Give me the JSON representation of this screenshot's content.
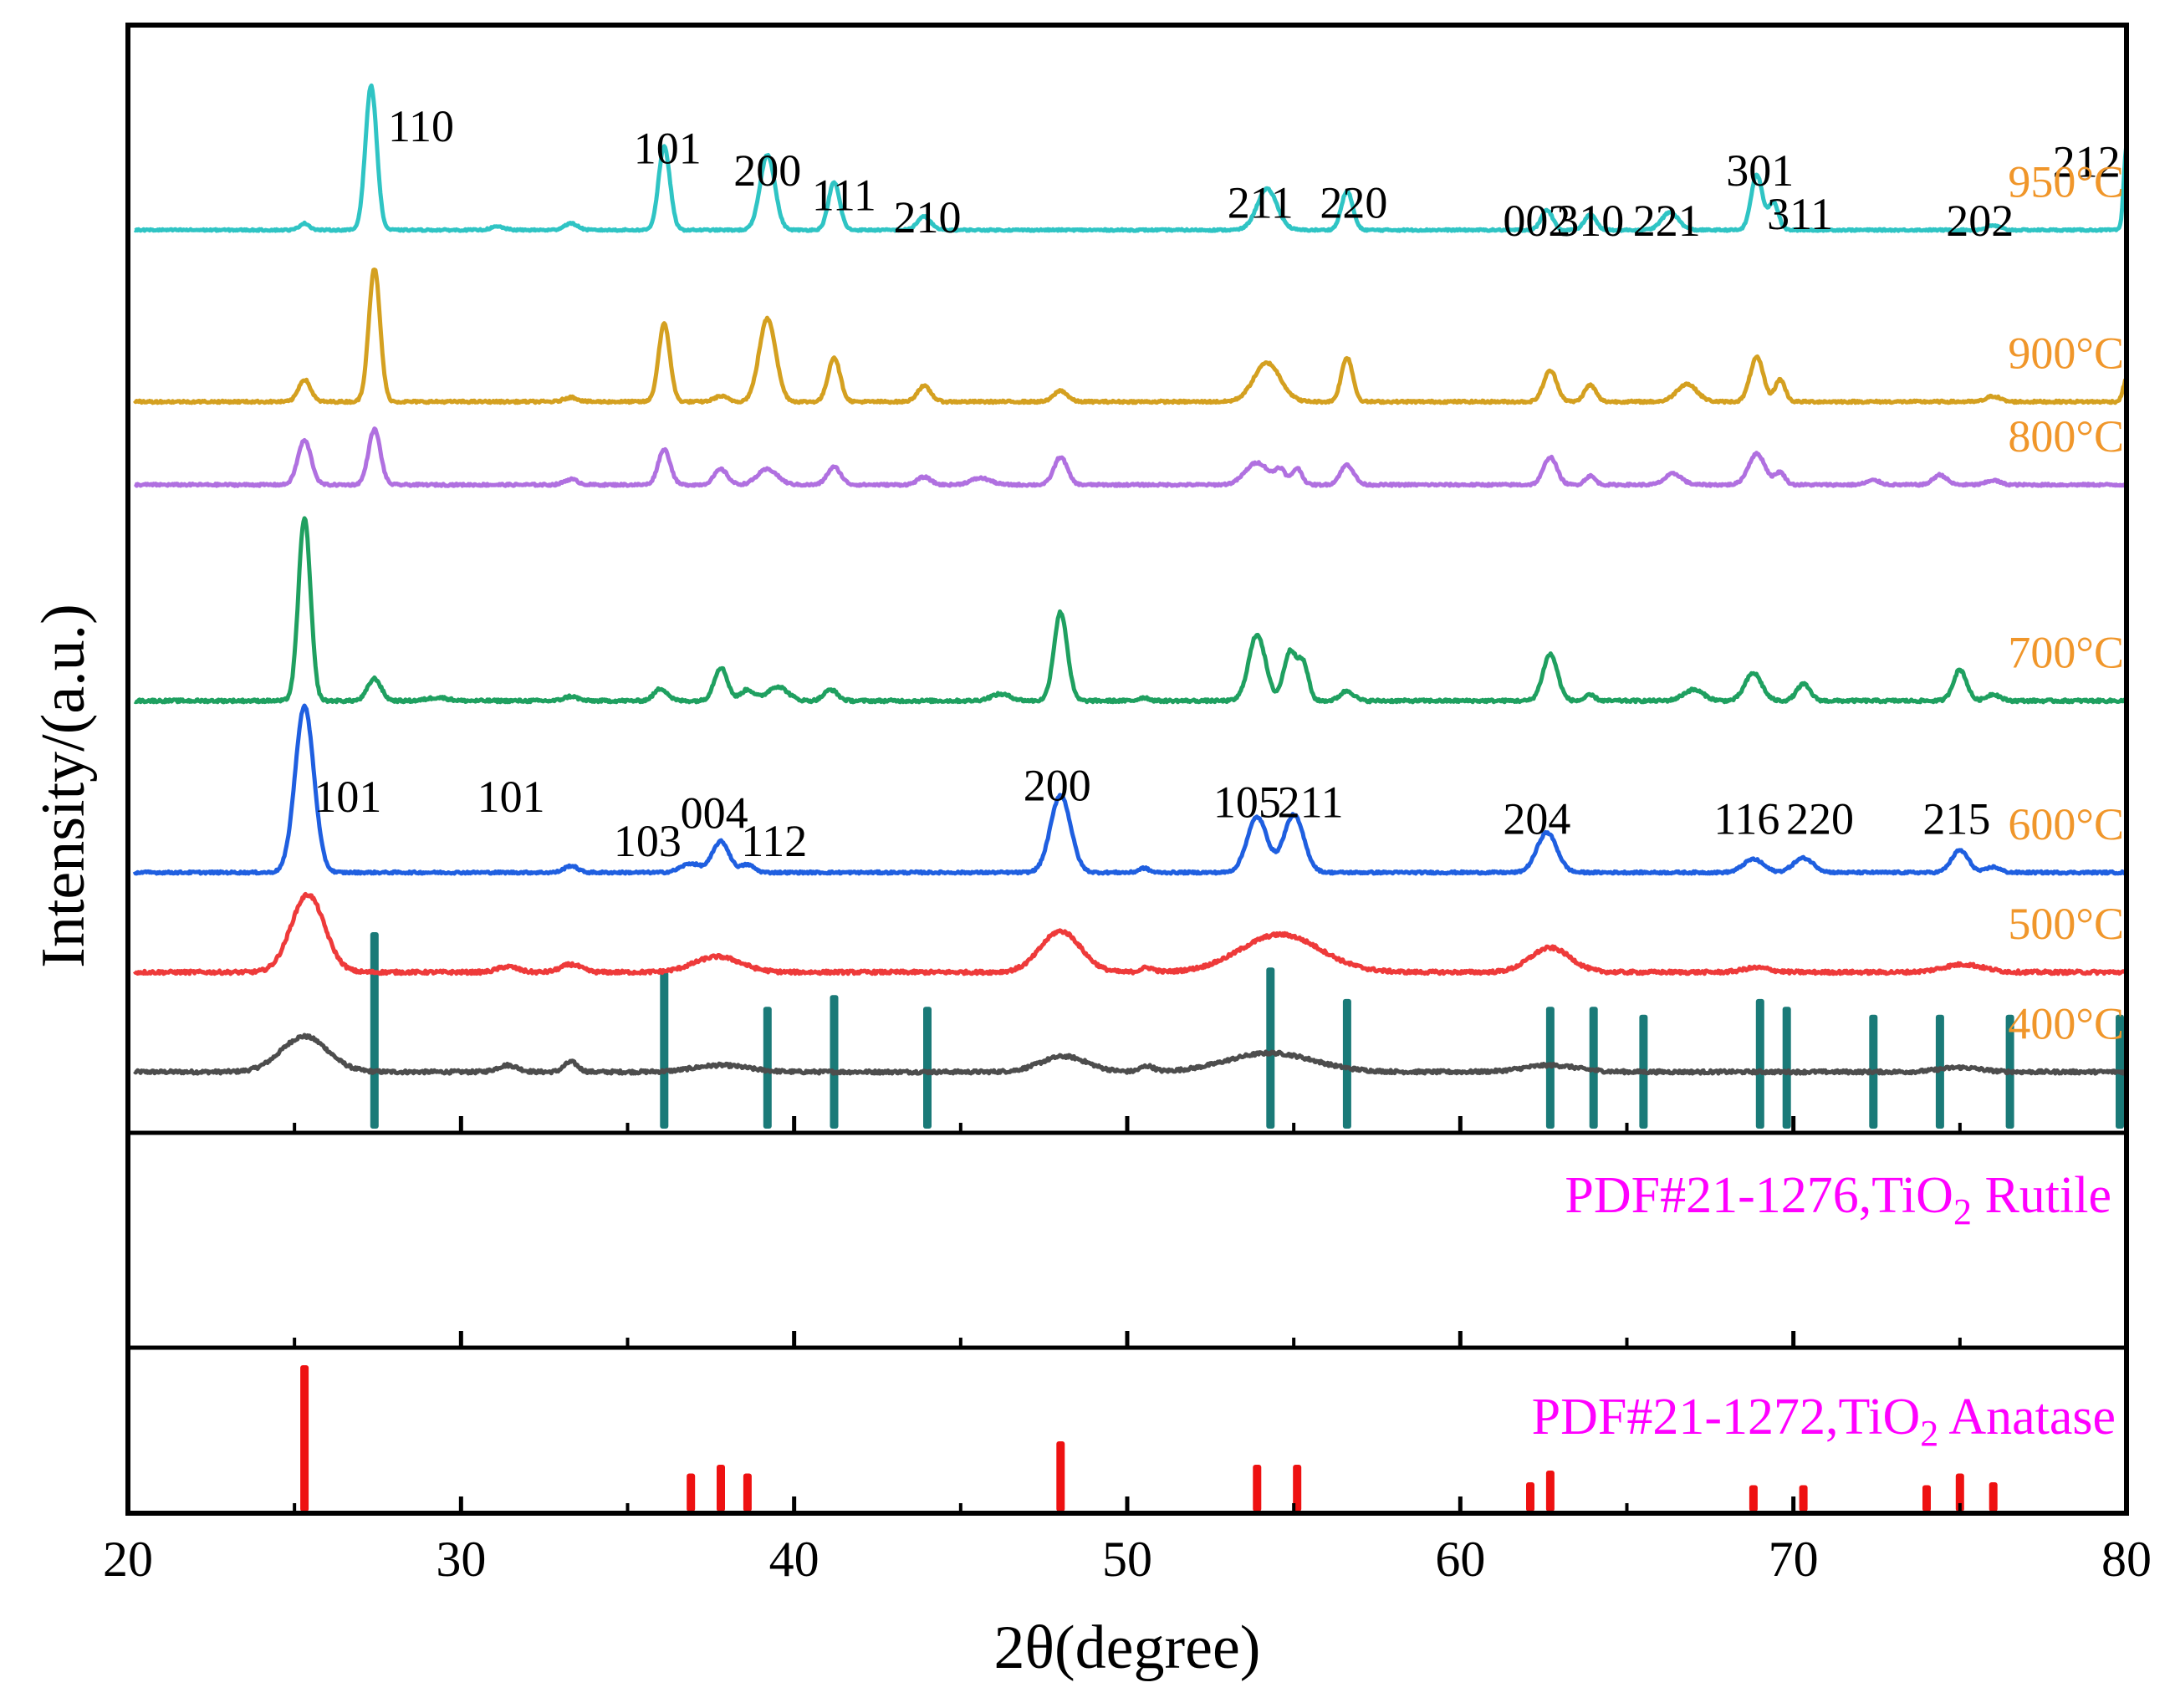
{
  "chart_data": {
    "type": "line",
    "title": "",
    "xlabel": "2θ(degree)",
    "ylabel": "Intensity/(a.u.)",
    "xlim": [
      20,
      80
    ],
    "x_ticks": [
      "20",
      "30",
      "40",
      "50",
      "60",
      "70",
      "80"
    ],
    "temperature_label_color": "#f0962a",
    "reference_label_color": "#ff00ff",
    "series": [
      {
        "name": "400°C",
        "label": "400°C",
        "color": "#4d4d4d",
        "offset": 0.055,
        "noise": 0.003,
        "peaks": [
          [
            25.3,
            0.032,
            0.7
          ],
          [
            31.4,
            0.006,
            0.3
          ],
          [
            33.3,
            0.009,
            0.2
          ],
          [
            37.8,
            0.006,
            0.8
          ],
          [
            48.1,
            0.014,
            0.7
          ],
          [
            50.6,
            0.005,
            0.2
          ],
          [
            54.3,
            0.017,
            1.3
          ],
          [
            62.7,
            0.006,
            0.8
          ],
          [
            75.0,
            0.004,
            0.6
          ]
        ]
      },
      {
        "name": "500°C",
        "label": "500°C",
        "color": "#ee3a3a",
        "offset": 0.145,
        "noise": 0.003,
        "peaks": [
          [
            25.4,
            0.07,
            0.5
          ],
          [
            31.4,
            0.005,
            0.3
          ],
          [
            33.3,
            0.007,
            0.3
          ],
          [
            37.7,
            0.014,
            0.7
          ],
          [
            48.0,
            0.037,
            0.6
          ],
          [
            50.6,
            0.004,
            0.2
          ],
          [
            54.6,
            0.034,
            1.2
          ],
          [
            62.7,
            0.022,
            0.6
          ],
          [
            68.9,
            0.004,
            0.4
          ],
          [
            75.1,
            0.007,
            0.6
          ]
        ]
      },
      {
        "name": "600°C",
        "label": "600°C",
        "color": "#1f5fe0",
        "offset": 0.235,
        "noise": 0.002,
        "peaks": [
          [
            25.3,
            0.15,
            0.28
          ],
          [
            33.3,
            0.006,
            0.2
          ],
          [
            36.9,
            0.008,
            0.3
          ],
          [
            37.8,
            0.028,
            0.25
          ],
          [
            38.6,
            0.007,
            0.2
          ],
          [
            48.0,
            0.07,
            0.3
          ],
          [
            50.5,
            0.004,
            0.15
          ],
          [
            53.9,
            0.05,
            0.3
          ],
          [
            55.0,
            0.052,
            0.3
          ],
          [
            62.6,
            0.036,
            0.3
          ],
          [
            68.8,
            0.012,
            0.3
          ],
          [
            70.3,
            0.013,
            0.3
          ],
          [
            75.0,
            0.02,
            0.25
          ],
          [
            76.0,
            0.005,
            0.2
          ]
        ]
      },
      {
        "name": "700°C",
        "label": "700°C",
        "color": "#1fa060",
        "offset": 0.39,
        "noise": 0.0025,
        "peaks": [
          [
            25.3,
            0.165,
            0.18
          ],
          [
            27.4,
            0.02,
            0.2
          ],
          [
            29.3,
            0.003,
            0.3
          ],
          [
            33.3,
            0.004,
            0.2
          ],
          [
            36.0,
            0.011,
            0.2
          ],
          [
            37.8,
            0.03,
            0.2
          ],
          [
            38.6,
            0.01,
            0.2
          ],
          [
            39.5,
            0.013,
            0.3
          ],
          [
            41.1,
            0.01,
            0.2
          ],
          [
            46.2,
            0.006,
            0.3
          ],
          [
            48.0,
            0.08,
            0.2
          ],
          [
            50.5,
            0.003,
            0.15
          ],
          [
            53.9,
            0.06,
            0.25
          ],
          [
            54.9,
            0.045,
            0.2
          ],
          [
            55.3,
            0.03,
            0.15
          ],
          [
            56.6,
            0.009,
            0.2
          ],
          [
            62.7,
            0.042,
            0.22
          ],
          [
            63.9,
            0.005,
            0.15
          ],
          [
            67.0,
            0.01,
            0.3
          ],
          [
            68.8,
            0.025,
            0.25
          ],
          [
            70.3,
            0.015,
            0.2
          ],
          [
            75.0,
            0.028,
            0.2
          ],
          [
            76.0,
            0.006,
            0.2
          ]
        ]
      },
      {
        "name": "800°C",
        "label": "800°C",
        "color": "#b070e0",
        "offset": 0.585,
        "noise": 0.002,
        "peaks": [
          [
            25.3,
            0.04,
            0.2
          ],
          [
            27.4,
            0.05,
            0.18
          ],
          [
            33.3,
            0.005,
            0.2
          ],
          [
            36.1,
            0.032,
            0.18
          ],
          [
            37.8,
            0.014,
            0.2
          ],
          [
            39.2,
            0.014,
            0.3
          ],
          [
            41.2,
            0.016,
            0.2
          ],
          [
            43.9,
            0.007,
            0.2
          ],
          [
            45.6,
            0.006,
            0.3
          ],
          [
            48.0,
            0.025,
            0.2
          ],
          [
            53.9,
            0.02,
            0.35
          ],
          [
            54.6,
            0.013,
            0.15
          ],
          [
            55.1,
            0.015,
            0.15
          ],
          [
            56.6,
            0.018,
            0.2
          ],
          [
            62.7,
            0.025,
            0.2
          ],
          [
            63.9,
            0.008,
            0.15
          ],
          [
            66.4,
            0.01,
            0.25
          ],
          [
            68.9,
            0.028,
            0.25
          ],
          [
            69.6,
            0.011,
            0.15
          ],
          [
            72.4,
            0.004,
            0.2
          ],
          [
            74.4,
            0.009,
            0.2
          ],
          [
            76.0,
            0.004,
            0.2
          ]
        ]
      },
      {
        "name": "900°C",
        "label": "900°C",
        "color": "#d4a020",
        "offset": 0.66,
        "noise": 0.002,
        "peaks": [
          [
            25.3,
            0.02,
            0.18
          ],
          [
            27.4,
            0.12,
            0.17
          ],
          [
            33.3,
            0.004,
            0.2
          ],
          [
            36.1,
            0.07,
            0.17
          ],
          [
            37.8,
            0.005,
            0.2
          ],
          [
            39.2,
            0.075,
            0.25
          ],
          [
            41.2,
            0.04,
            0.18
          ],
          [
            43.9,
            0.014,
            0.2
          ],
          [
            48.0,
            0.01,
            0.2
          ],
          [
            54.2,
            0.035,
            0.4
          ],
          [
            56.6,
            0.04,
            0.17
          ],
          [
            62.7,
            0.028,
            0.2
          ],
          [
            63.9,
            0.015,
            0.17
          ],
          [
            66.8,
            0.016,
            0.3
          ],
          [
            68.9,
            0.04,
            0.2
          ],
          [
            69.6,
            0.02,
            0.15
          ],
          [
            76.0,
            0.005,
            0.2
          ],
          [
            80.0,
            0.02,
            0.1
          ]
        ]
      },
      {
        "name": "950°C",
        "label": "950°C",
        "color": "#2fc4c4",
        "offset": 0.815,
        "noise": 0.0015,
        "peaks": [
          [
            25.3,
            0.006,
            0.15
          ],
          [
            27.3,
            0.13,
            0.17
          ],
          [
            31.1,
            0.003,
            0.2
          ],
          [
            33.3,
            0.006,
            0.2
          ],
          [
            36.1,
            0.075,
            0.17
          ],
          [
            39.2,
            0.068,
            0.22
          ],
          [
            41.2,
            0.043,
            0.17
          ],
          [
            43.9,
            0.012,
            0.2
          ],
          [
            54.2,
            0.037,
            0.3
          ],
          [
            56.6,
            0.035,
            0.17
          ],
          [
            62.6,
            0.018,
            0.17
          ],
          [
            63.9,
            0.014,
            0.17
          ],
          [
            66.3,
            0.016,
            0.25
          ],
          [
            68.9,
            0.05,
            0.17
          ],
          [
            69.4,
            0.025,
            0.15
          ],
          [
            76.0,
            0.004,
            0.2
          ],
          [
            80.0,
            0.075,
            0.08
          ]
        ]
      }
    ],
    "rutile_reference": {
      "label": "PDF#21-1276,TiO",
      "label_subscript": "2",
      "label_suffix": " Rutile",
      "color": "#1a7a78",
      "sticks": [
        [
          27.4,
          100
        ],
        [
          36.1,
          80
        ],
        [
          39.2,
          62
        ],
        [
          41.2,
          68
        ],
        [
          44.0,
          62
        ],
        [
          54.3,
          82
        ],
        [
          56.6,
          66
        ],
        [
          62.7,
          62
        ],
        [
          64.0,
          62
        ],
        [
          65.5,
          58
        ],
        [
          69.0,
          66
        ],
        [
          69.8,
          62
        ],
        [
          72.4,
          58
        ],
        [
          74.4,
          58
        ],
        [
          76.5,
          58
        ],
        [
          79.8,
          58
        ]
      ]
    },
    "anatase_reference": {
      "label": "PDF#21-1272,TiO",
      "label_subscript": "2",
      "label_suffix": " Anatase",
      "color": "#ee1111",
      "sticks": [
        [
          25.3,
          100
        ],
        [
          36.9,
          26
        ],
        [
          37.8,
          32
        ],
        [
          38.6,
          26
        ],
        [
          48.0,
          48
        ],
        [
          53.9,
          32
        ],
        [
          55.1,
          32
        ],
        [
          62.1,
          20
        ],
        [
          62.7,
          28
        ],
        [
          68.8,
          18
        ],
        [
          70.3,
          18
        ],
        [
          74.0,
          18
        ],
        [
          75.0,
          26
        ],
        [
          76.0,
          20
        ]
      ]
    },
    "annotations": {
      "rutile": [
        {
          "text": "110",
          "x": 28.8,
          "y": 0.895
        },
        {
          "text": "101",
          "x": 36.2,
          "y": 0.875
        },
        {
          "text": "200",
          "x": 39.2,
          "y": 0.855
        },
        {
          "text": "111",
          "x": 41.5,
          "y": 0.833
        },
        {
          "text": "210",
          "x": 44.0,
          "y": 0.813
        },
        {
          "text": "211",
          "x": 54.0,
          "y": 0.826
        },
        {
          "text": "220",
          "x": 56.8,
          "y": 0.826
        },
        {
          "text": "002",
          "x": 62.3,
          "y": 0.81
        },
        {
          "text": "310",
          "x": 63.9,
          "y": 0.81
        },
        {
          "text": "221",
          "x": 66.2,
          "y": 0.81
        },
        {
          "text": "301",
          "x": 69.0,
          "y": 0.855
        },
        {
          "text": "311",
          "x": 70.2,
          "y": 0.816
        },
        {
          "text": "202",
          "x": 75.6,
          "y": 0.81
        },
        {
          "text": "212",
          "x": 78.8,
          "y": 0.863
        }
      ],
      "anatase": [
        {
          "text": "101",
          "x": 26.6,
          "y": 0.29
        },
        {
          "text": "101",
          "x": 31.5,
          "y": 0.29
        },
        {
          "text": "103",
          "x": 35.6,
          "y": 0.25
        },
        {
          "text": "004",
          "x": 37.6,
          "y": 0.275
        },
        {
          "text": "112",
          "x": 39.4,
          "y": 0.25
        },
        {
          "text": "200",
          "x": 47.9,
          "y": 0.3
        },
        {
          "text": "105",
          "x": 53.6,
          "y": 0.285
        },
        {
          "text": "211",
          "x": 55.5,
          "y": 0.285
        },
        {
          "text": "204",
          "x": 62.3,
          "y": 0.27
        },
        {
          "text": "116",
          "x": 68.6,
          "y": 0.27
        },
        {
          "text": "220",
          "x": 70.8,
          "y": 0.27
        },
        {
          "text": "215",
          "x": 74.9,
          "y": 0.27
        }
      ]
    }
  }
}
